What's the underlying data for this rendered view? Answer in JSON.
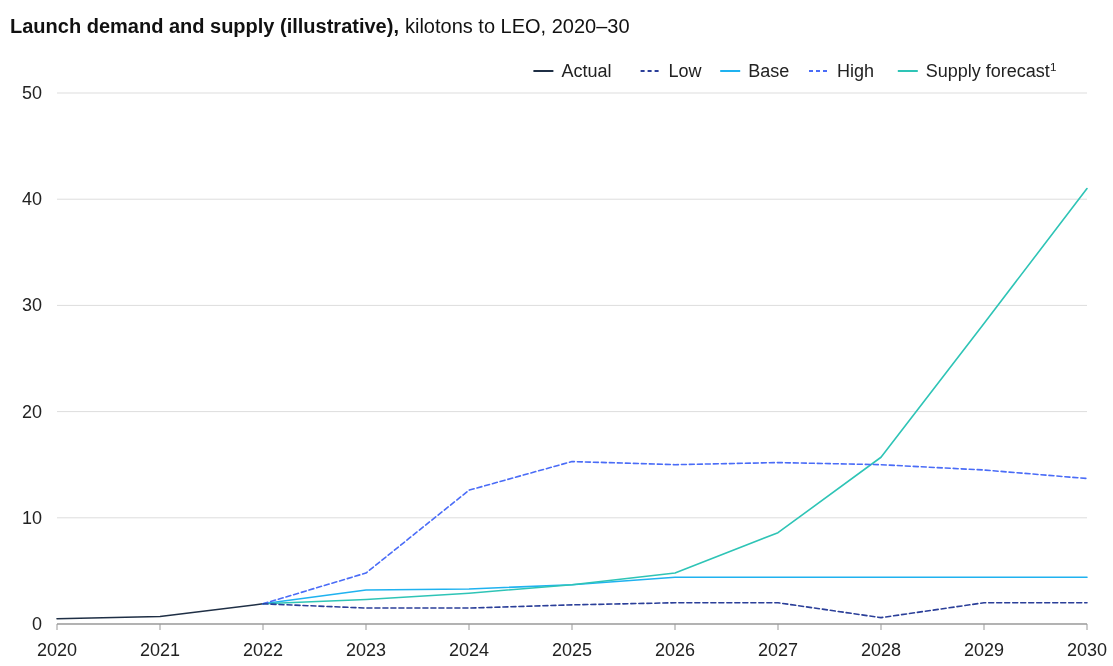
{
  "chart_data": {
    "type": "line",
    "title": "Launch demand and supply (illustrative),",
    "subtitle": "kilotons to LEO, 2020–30",
    "xlim": [
      2020,
      2030
    ],
    "xticks": [
      2020,
      2021,
      2022,
      2023,
      2024,
      2025,
      2026,
      2027,
      2028,
      2029,
      2030
    ],
    "ylim": [
      0,
      50
    ],
    "yticks": [
      0,
      10,
      20,
      30,
      40,
      50
    ],
    "grid": "y",
    "legend": "top right",
    "series": [
      {
        "name": "Actual",
        "color": "#1f2f45",
        "line_style": "solid",
        "x": [
          2020,
          2021,
          2022
        ],
        "values": [
          0.5,
          0.7,
          1.9
        ]
      },
      {
        "name": "Low",
        "color": "#2b3f99",
        "line_style": "dashed",
        "x": [
          2022,
          2023,
          2024,
          2025,
          2026,
          2027,
          2028,
          2029,
          2030
        ],
        "values": [
          1.9,
          1.5,
          1.5,
          1.8,
          2.0,
          2.0,
          0.6,
          2.0,
          2.0
        ]
      },
      {
        "name": "Base",
        "color": "#1fb2f0",
        "line_style": "solid",
        "x": [
          2022,
          2023,
          2024,
          2025,
          2026,
          2027,
          2028,
          2029,
          2030
        ],
        "values": [
          1.9,
          3.2,
          3.3,
          3.7,
          4.4,
          4.4,
          4.4,
          4.4,
          4.4
        ]
      },
      {
        "name": "High",
        "color": "#4a6cf7",
        "line_style": "dashed",
        "x": [
          2022,
          2023,
          2024,
          2025,
          2026,
          2027,
          2028,
          2029,
          2030
        ],
        "values": [
          1.9,
          4.8,
          12.6,
          15.3,
          15.0,
          15.2,
          15.0,
          14.5,
          13.7
        ]
      },
      {
        "name": "Supply forecast$^{1}$",
        "color": "#2ec4b6",
        "line_style": "solid",
        "x": [
          2022,
          2023,
          2024,
          2025,
          2026,
          2027,
          2028,
          2029,
          2030
        ],
        "values": [
          1.9,
          2.3,
          2.9,
          3.7,
          4.8,
          8.6,
          15.7,
          28.3,
          41.0
        ]
      }
    ]
  }
}
